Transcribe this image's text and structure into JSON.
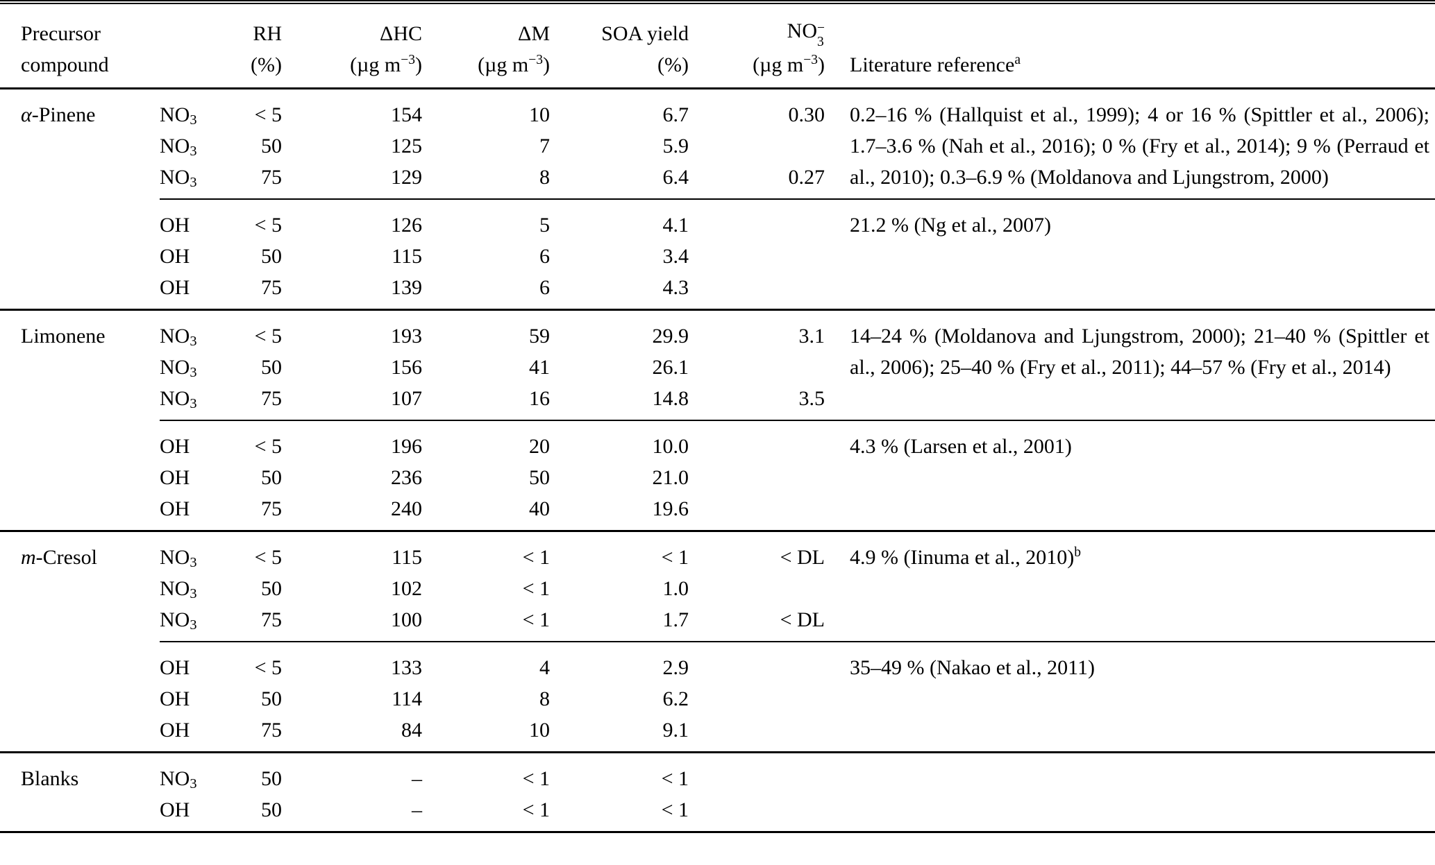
{
  "page": {
    "background_color": "#ffffff",
    "text_color": "#000000"
  },
  "table": {
    "header": {
      "precursor_line1": "Precursor",
      "precursor_line2": "compound",
      "oxidant_label": "",
      "rh_label": "RH",
      "rh_unit": "(%)",
      "delta_hc_label": "ΔHC",
      "delta_m_label": "ΔM",
      "soa_yield_label": "SOA yield",
      "soa_yield_unit": "(%)",
      "no3_label_main": "NO",
      "no3_label_sub": "3",
      "no3_label_sup": "−",
      "ug_unit_open": "(µg m",
      "ug_unit_sup": "−3",
      "ug_unit_close": ")",
      "reference_label": "Literature reference",
      "reference_sup": "a"
    },
    "groups": [
      {
        "precursor": "α-Pinene",
        "blocks": [
          {
            "rows": [
              {
                "oxidant": "NO3",
                "rh": "< 5",
                "delta_hc": "154",
                "delta_m": "10",
                "soa_yield": "6.7",
                "no3": "0.30"
              },
              {
                "oxidant": "NO3",
                "rh": "50",
                "delta_hc": "125",
                "delta_m": "7",
                "soa_yield": "5.9",
                "no3": ""
              },
              {
                "oxidant": "NO3",
                "rh": "75",
                "delta_hc": "129",
                "delta_m": "8",
                "soa_yield": "6.4",
                "no3": "0.27"
              }
            ],
            "reference": {
              "text": "0.2–16 % (Hallquist et al., 1999); 4 or 16 % (Spittler et al., 2006); 1.7–3.6 % (Nah et al., 2016); 0 % (Fry et al., 2014); 9 % (Perraud et al., 2010); 0.3–6.9 % (Moldanova and Ljungstrom, 2000)",
              "sup": ""
            }
          },
          {
            "rows": [
              {
                "oxidant": "OH",
                "rh": "< 5",
                "delta_hc": "126",
                "delta_m": "5",
                "soa_yield": "4.1",
                "no3": ""
              },
              {
                "oxidant": "OH",
                "rh": "50",
                "delta_hc": "115",
                "delta_m": "6",
                "soa_yield": "3.4",
                "no3": ""
              },
              {
                "oxidant": "OH",
                "rh": "75",
                "delta_hc": "139",
                "delta_m": "6",
                "soa_yield": "4.3",
                "no3": ""
              }
            ],
            "reference": {
              "text": "21.2 % (Ng et al., 2007)",
              "sup": ""
            }
          }
        ]
      },
      {
        "precursor": "Limonene",
        "blocks": [
          {
            "rows": [
              {
                "oxidant": "NO3",
                "rh": "< 5",
                "delta_hc": "193",
                "delta_m": "59",
                "soa_yield": "29.9",
                "no3": "3.1"
              },
              {
                "oxidant": "NO3",
                "rh": "50",
                "delta_hc": "156",
                "delta_m": "41",
                "soa_yield": "26.1",
                "no3": ""
              },
              {
                "oxidant": "NO3",
                "rh": "75",
                "delta_hc": "107",
                "delta_m": "16",
                "soa_yield": "14.8",
                "no3": "3.5"
              }
            ],
            "reference": {
              "text": "14–24 % (Moldanova and Ljungstrom, 2000); 21–40 % (Spittler et al., 2006); 25–40 % (Fry et al., 2011); 44–57 % (Fry et al., 2014)",
              "sup": ""
            }
          },
          {
            "rows": [
              {
                "oxidant": "OH",
                "rh": "< 5",
                "delta_hc": "196",
                "delta_m": "20",
                "soa_yield": "10.0",
                "no3": ""
              },
              {
                "oxidant": "OH",
                "rh": "50",
                "delta_hc": "236",
                "delta_m": "50",
                "soa_yield": "21.0",
                "no3": ""
              },
              {
                "oxidant": "OH",
                "rh": "75",
                "delta_hc": "240",
                "delta_m": "40",
                "soa_yield": "19.6",
                "no3": ""
              }
            ],
            "reference": {
              "text": "4.3 % (Larsen et al., 2001)",
              "sup": ""
            }
          }
        ]
      },
      {
        "precursor": "m-Cresol",
        "blocks": [
          {
            "rows": [
              {
                "oxidant": "NO3",
                "rh": "< 5",
                "delta_hc": "115",
                "delta_m": "< 1",
                "soa_yield": "< 1",
                "no3": "< DL"
              },
              {
                "oxidant": "NO3",
                "rh": "50",
                "delta_hc": "102",
                "delta_m": "< 1",
                "soa_yield": "1.0",
                "no3": ""
              },
              {
                "oxidant": "NO3",
                "rh": "75",
                "delta_hc": "100",
                "delta_m": "< 1",
                "soa_yield": "1.7",
                "no3": "< DL"
              }
            ],
            "reference": {
              "text": "4.9 % (Iinuma et al., 2010)",
              "sup": "b"
            }
          },
          {
            "rows": [
              {
                "oxidant": "OH",
                "rh": "< 5",
                "delta_hc": "133",
                "delta_m": "4",
                "soa_yield": "2.9",
                "no3": ""
              },
              {
                "oxidant": "OH",
                "rh": "50",
                "delta_hc": "114",
                "delta_m": "8",
                "soa_yield": "6.2",
                "no3": ""
              },
              {
                "oxidant": "OH",
                "rh": "75",
                "delta_hc": "84",
                "delta_m": "10",
                "soa_yield": "9.1",
                "no3": ""
              }
            ],
            "reference": {
              "text": "35–49 % (Nakao et al., 2011)",
              "sup": ""
            }
          }
        ]
      },
      {
        "precursor": "Blanks",
        "blocks": [
          {
            "rows": [
              {
                "oxidant": "NO3",
                "rh": "50",
                "delta_hc": "–",
                "delta_m": "< 1",
                "soa_yield": "< 1",
                "no3": ""
              },
              {
                "oxidant": "OH",
                "rh": "50",
                "delta_hc": "–",
                "delta_m": "< 1",
                "soa_yield": "< 1",
                "no3": ""
              }
            ],
            "reference": {
              "text": "",
              "sup": ""
            }
          }
        ]
      }
    ]
  }
}
